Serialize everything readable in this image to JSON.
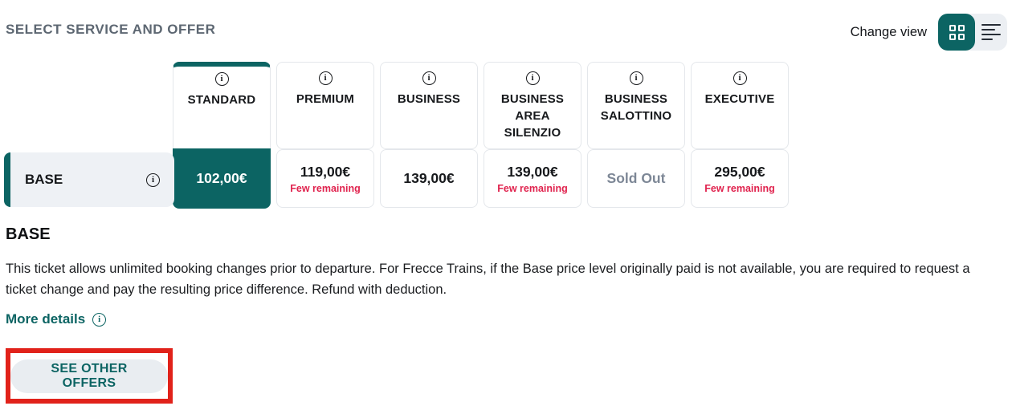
{
  "header": {
    "title": "SELECT SERVICE AND OFFER",
    "change_view_label": "Change view",
    "view_modes": [
      {
        "name": "grid",
        "active": true
      },
      {
        "name": "list",
        "active": false
      }
    ]
  },
  "matrix": {
    "services": [
      {
        "name": "STANDARD",
        "selected": true
      },
      {
        "name": "PREMIUM",
        "selected": false
      },
      {
        "name": "BUSINESS",
        "selected": false
      },
      {
        "name": "BUSINESS AREA SILENZIO",
        "selected": false
      },
      {
        "name": "BUSINESS SALOTTINO",
        "selected": false
      },
      {
        "name": "EXECUTIVE",
        "selected": false
      }
    ],
    "offer_row": {
      "label": "BASE",
      "cells": [
        {
          "value": "102,00€",
          "state": "selected"
        },
        {
          "value": "119,00€",
          "note": "Few remaining"
        },
        {
          "value": "139,00€"
        },
        {
          "value": "139,00€",
          "note": "Few remaining"
        },
        {
          "value": "Sold Out",
          "state": "sold-out"
        },
        {
          "value": "295,00€",
          "note": "Few remaining"
        }
      ]
    }
  },
  "details": {
    "heading": "BASE",
    "description": "This ticket allows unlimited booking changes prior to departure. For Frecce Trains, if the Base price level originally paid is not available, you are required to request a ticket change and pay the resulting price difference. Refund with deduction.",
    "more_details_label": "More details",
    "see_other_offers_label": "SEE OTHER OFFERS"
  },
  "colors": {
    "accent_teal": "#0c6463",
    "few_remaining_red": "#e0234e",
    "sold_out_gray": "#7d8796",
    "annotation_red": "#e1221a"
  }
}
